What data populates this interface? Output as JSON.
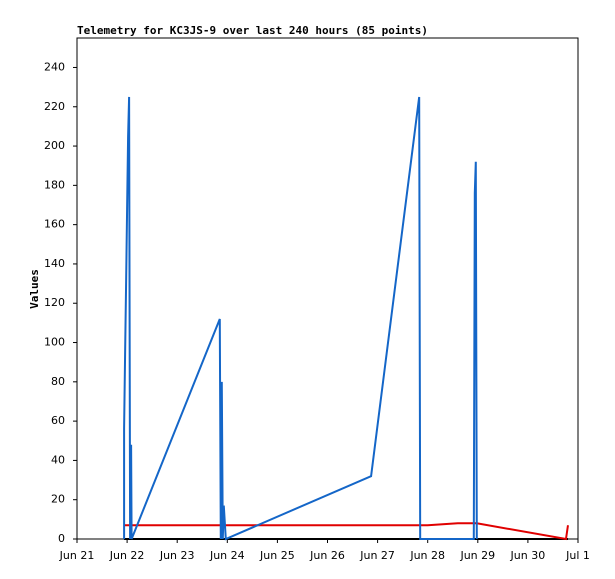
{
  "chart_data": {
    "type": "line",
    "title": "Telemetry for KC3JS-9 over last 240 hours (85 points)",
    "y_label": "Values",
    "xlim": [
      0,
      10
    ],
    "xticks": [
      {
        "value": 0,
        "label": "Jun 21"
      },
      {
        "value": 1,
        "label": "Jun 22"
      },
      {
        "value": 2,
        "label": "Jun 23"
      },
      {
        "value": 3,
        "label": "Jun 24"
      },
      {
        "value": 4,
        "label": "Jun 25"
      },
      {
        "value": 5,
        "label": "Jun 26"
      },
      {
        "value": 6,
        "label": "Jun 27"
      },
      {
        "value": 7,
        "label": "Jun 28"
      },
      {
        "value": 8,
        "label": "Jun 29"
      },
      {
        "value": 9,
        "label": "Jun 30"
      },
      {
        "value": 10,
        "label": "Jul 1"
      }
    ],
    "ylim": [
      0,
      255
    ],
    "yticks": [
      0,
      20,
      40,
      60,
      80,
      100,
      120,
      140,
      160,
      180,
      200,
      220,
      240
    ],
    "series": [
      {
        "color": "#000000",
        "x": [
          0.94,
          9.8
        ],
        "values": [
          0,
          0
        ]
      },
      {
        "color": "#e00000",
        "x": [
          0.94,
          7.0,
          7.6,
          7.98,
          9.76,
          9.8
        ],
        "values": [
          7,
          7,
          8,
          8,
          0,
          7
        ]
      },
      {
        "color": "#1466c8",
        "x": [
          0.94,
          0.94,
          0.94,
          0.96,
          0.98,
          1.0,
          1.02,
          1.04,
          1.06,
          1.08,
          1.09,
          2.85,
          2.87,
          2.89,
          2.91,
          2.93,
          2.97,
          5.87,
          6.83,
          6.85,
          7.92,
          7.94,
          7.96,
          7.98
        ],
        "values": [
          0,
          20,
          56,
          94,
          130,
          168,
          205,
          225,
          0,
          48,
          0,
          112,
          0,
          80,
          0,
          17,
          0,
          32,
          225,
          0,
          0,
          176,
          192,
          0
        ]
      }
    ]
  }
}
